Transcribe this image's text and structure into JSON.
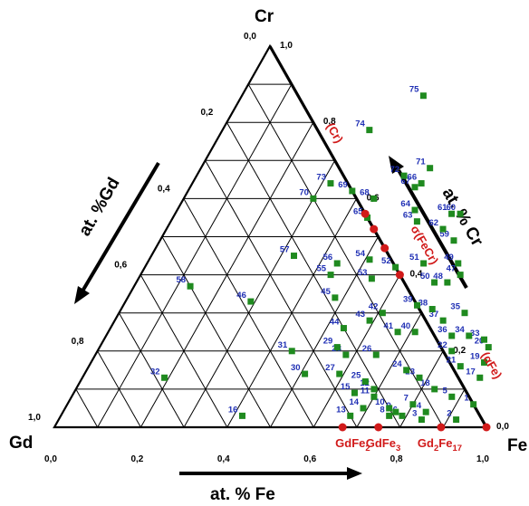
{
  "corners": {
    "cr": "Cr",
    "gd": "Gd",
    "fe": "Fe"
  },
  "axis_titles": {
    "gd": "at. %Gd",
    "cr": "at. % Cr",
    "fe": "at. % Fe"
  },
  "ticks": {
    "gd": [
      "0,0",
      "0,2",
      "0,4",
      "0,6",
      "0,8",
      "1,0"
    ],
    "cr": [
      "1,0",
      "0,8",
      "0,6",
      "0,4",
      "0,2",
      "0,0"
    ],
    "fe": [
      "0,0",
      "0,2",
      "0,4",
      "0,6",
      "0,8",
      "1,0"
    ]
  },
  "colors": {
    "sample": "#1f8a1f",
    "sample_label": "#1f2fb4",
    "phase": "#d11a1a",
    "line": "#000000"
  },
  "chart_data": {
    "type": "scatter",
    "ternary": true,
    "components": [
      "Gd",
      "Fe",
      "Cr"
    ],
    "grid_step": 0.1,
    "samples": [
      {
        "id": "1",
        "fe": 0.94,
        "cr": 0.06
      },
      {
        "id": "2",
        "fe": 0.92,
        "cr": 0.02
      },
      {
        "id": "3",
        "fe": 0.84,
        "cr": 0.02
      },
      {
        "id": "4",
        "fe": 0.84,
        "cr": 0.04
      },
      {
        "id": "5",
        "fe": 0.88,
        "cr": 0.08
      },
      {
        "id": "6",
        "fe": 0.79,
        "cr": 0.03
      },
      {
        "id": "7",
        "fe": 0.8,
        "cr": 0.06
      },
      {
        "id": "8",
        "fe": 0.76,
        "cr": 0.03
      },
      {
        "id": "9",
        "fe": 0.77,
        "cr": 0.04
      },
      {
        "id": "10",
        "fe": 0.75,
        "cr": 0.05
      },
      {
        "id": "11",
        "fe": 0.7,
        "cr": 0.08
      },
      {
        "id": "12",
        "fe": 0.69,
        "cr": 0.1
      },
      {
        "id": "13",
        "fe": 0.67,
        "cr": 0.03
      },
      {
        "id": "14",
        "fe": 0.69,
        "cr": 0.05
      },
      {
        "id": "15",
        "fe": 0.65,
        "cr": 0.09
      },
      {
        "id": "16",
        "fe": 0.42,
        "cr": 0.03
      },
      {
        "id": "17",
        "fe": 0.92,
        "cr": 0.13
      },
      {
        "id": "18",
        "fe": 0.83,
        "cr": 0.1
      },
      {
        "id": "19",
        "fe": 0.91,
        "cr": 0.17
      },
      {
        "id": "20",
        "fe": 0.9,
        "cr": 0.21
      },
      {
        "id": "21",
        "fe": 0.86,
        "cr": 0.16
      },
      {
        "id": "22",
        "fe": 0.82,
        "cr": 0.2
      },
      {
        "id": "23",
        "fe": 0.78,
        "cr": 0.13
      },
      {
        "id": "24",
        "fe": 0.74,
        "cr": 0.15
      },
      {
        "id": "25",
        "fe": 0.66,
        "cr": 0.12
      },
      {
        "id": "26",
        "fe": 0.65,
        "cr": 0.19
      },
      {
        "id": "27",
        "fe": 0.59,
        "cr": 0.14
      },
      {
        "id": "28",
        "fe": 0.58,
        "cr": 0.19
      },
      {
        "id": "29",
        "fe": 0.55,
        "cr": 0.21
      },
      {
        "id": "30",
        "fe": 0.51,
        "cr": 0.14
      },
      {
        "id": "31",
        "fe": 0.45,
        "cr": 0.2
      },
      {
        "id": "32",
        "fe": 0.19,
        "cr": 0.13
      },
      {
        "id": "33",
        "fe": 0.88,
        "cr": 0.23
      },
      {
        "id": "34",
        "fe": 0.84,
        "cr": 0.24
      },
      {
        "id": "35",
        "fe": 0.8,
        "cr": 0.3
      },
      {
        "id": "36",
        "fe": 0.8,
        "cr": 0.24
      },
      {
        "id": "37",
        "fe": 0.76,
        "cr": 0.28
      },
      {
        "id": "38",
        "fe": 0.72,
        "cr": 0.31
      },
      {
        "id": "39",
        "fe": 0.68,
        "cr": 0.32
      },
      {
        "id": "40",
        "fe": 0.71,
        "cr": 0.25
      },
      {
        "id": "41",
        "fe": 0.67,
        "cr": 0.25
      },
      {
        "id": "42",
        "fe": 0.61,
        "cr": 0.3
      },
      {
        "id": "43",
        "fe": 0.59,
        "cr": 0.28
      },
      {
        "id": "44",
        "fe": 0.54,
        "cr": 0.26
      },
      {
        "id": "45",
        "fe": 0.48,
        "cr": 0.34
      },
      {
        "id": "46",
        "fe": 0.29,
        "cr": 0.33
      },
      {
        "id": "47",
        "fe": 0.74,
        "cr": 0.4
      },
      {
        "id": "48",
        "fe": 0.72,
        "cr": 0.38
      },
      {
        "id": "49",
        "fe": 0.72,
        "cr": 0.43
      },
      {
        "id": "50",
        "fe": 0.69,
        "cr": 0.38
      },
      {
        "id": "51",
        "fe": 0.64,
        "cr": 0.43
      },
      {
        "id": "52",
        "fe": 0.58,
        "cr": 0.42
      },
      {
        "id": "53",
        "fe": 0.54,
        "cr": 0.39
      },
      {
        "id": "54",
        "fe": 0.51,
        "cr": 0.44
      },
      {
        "id": "55",
        "fe": 0.44,
        "cr": 0.4
      },
      {
        "id": "56",
        "fe": 0.44,
        "cr": 0.43
      },
      {
        "id": "57",
        "fe": 0.33,
        "cr": 0.45
      },
      {
        "id": "58",
        "fe": 0.13,
        "cr": 0.37
      },
      {
        "id": "59",
        "fe": 0.68,
        "cr": 0.49
      },
      {
        "id": "60",
        "fe": 0.66,
        "cr": 0.56
      },
      {
        "id": "61",
        "fe": 0.64,
        "cr": 0.56
      },
      {
        "id": "62",
        "fe": 0.64,
        "cr": 0.52
      },
      {
        "id": "63",
        "fe": 0.57,
        "cr": 0.54
      },
      {
        "id": "64",
        "fe": 0.55,
        "cr": 0.57
      },
      {
        "id": "65",
        "fe": 0.45,
        "cr": 0.55
      },
      {
        "id": "66",
        "fe": 0.53,
        "cr": 0.64
      },
      {
        "id": "67",
        "fe": 0.52,
        "cr": 0.63
      },
      {
        "id": "68",
        "fe": 0.44,
        "cr": 0.6
      },
      {
        "id": "69",
        "fe": 0.38,
        "cr": 0.62
      },
      {
        "id": "70",
        "fe": 0.3,
        "cr": 0.6
      },
      {
        "id": "71",
        "fe": 0.53,
        "cr": 0.68
      },
      {
        "id": "72",
        "fe": 0.48,
        "cr": 0.66
      },
      {
        "id": "73",
        "fe": 0.32,
        "cr": 0.64
      },
      {
        "id": "74",
        "fe": 0.34,
        "cr": 0.78
      },
      {
        "id": "75",
        "fe": 0.42,
        "cr": 0.87
      }
    ],
    "phases": [
      {
        "label": "(Cr)",
        "fe": 0.0,
        "cr": 1.0
      },
      {
        "label": "σ(FeCr)",
        "fe": 0.44,
        "cr": 0.56
      },
      {
        "label": "",
        "fe": 0.48,
        "cr": 0.52
      },
      {
        "label": "",
        "fe": 0.53,
        "cr": 0.47
      },
      {
        "label": "",
        "fe": 0.6,
        "cr": 0.4
      },
      {
        "label": "(αFe)",
        "fe": 1.0,
        "cr": 0.0
      },
      {
        "label": "GdFe2",
        "fe": 0.667,
        "cr": 0.0,
        "base": "GdFe",
        "sub": "2"
      },
      {
        "label": "GdFe3",
        "fe": 0.75,
        "cr": 0.0,
        "base": "GdFe",
        "sub": "3"
      },
      {
        "label": "Gd2Fe17",
        "fe": 0.895,
        "cr": 0.0,
        "base": "Gd",
        "sub": "2",
        "base2": "Fe",
        "sub2": "17"
      }
    ]
  }
}
